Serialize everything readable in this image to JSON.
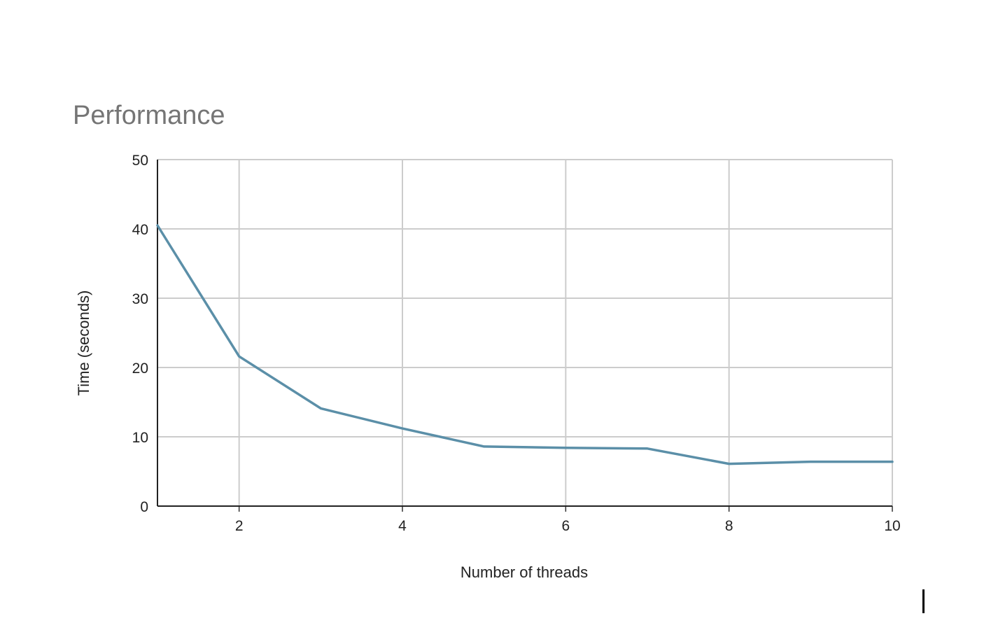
{
  "chart_data": {
    "type": "line",
    "title": "Performance",
    "xlabel": "Number of threads",
    "ylabel": "Time (seconds)",
    "xlim": [
      1,
      10
    ],
    "ylim": [
      0,
      50
    ],
    "x_ticks": [
      2,
      4,
      6,
      8,
      10
    ],
    "y_ticks": [
      0,
      10,
      20,
      30,
      40,
      50
    ],
    "grid": true,
    "legend": "none",
    "series": [
      {
        "x": [
          1,
          2,
          3,
          4,
          5,
          6,
          7,
          8,
          9,
          10
        ],
        "values": [
          40.5,
          21.6,
          14.1,
          11.2,
          8.6,
          8.4,
          8.3,
          6.1,
          6.4,
          6.4
        ],
        "color": "#5b8fa8"
      }
    ]
  }
}
